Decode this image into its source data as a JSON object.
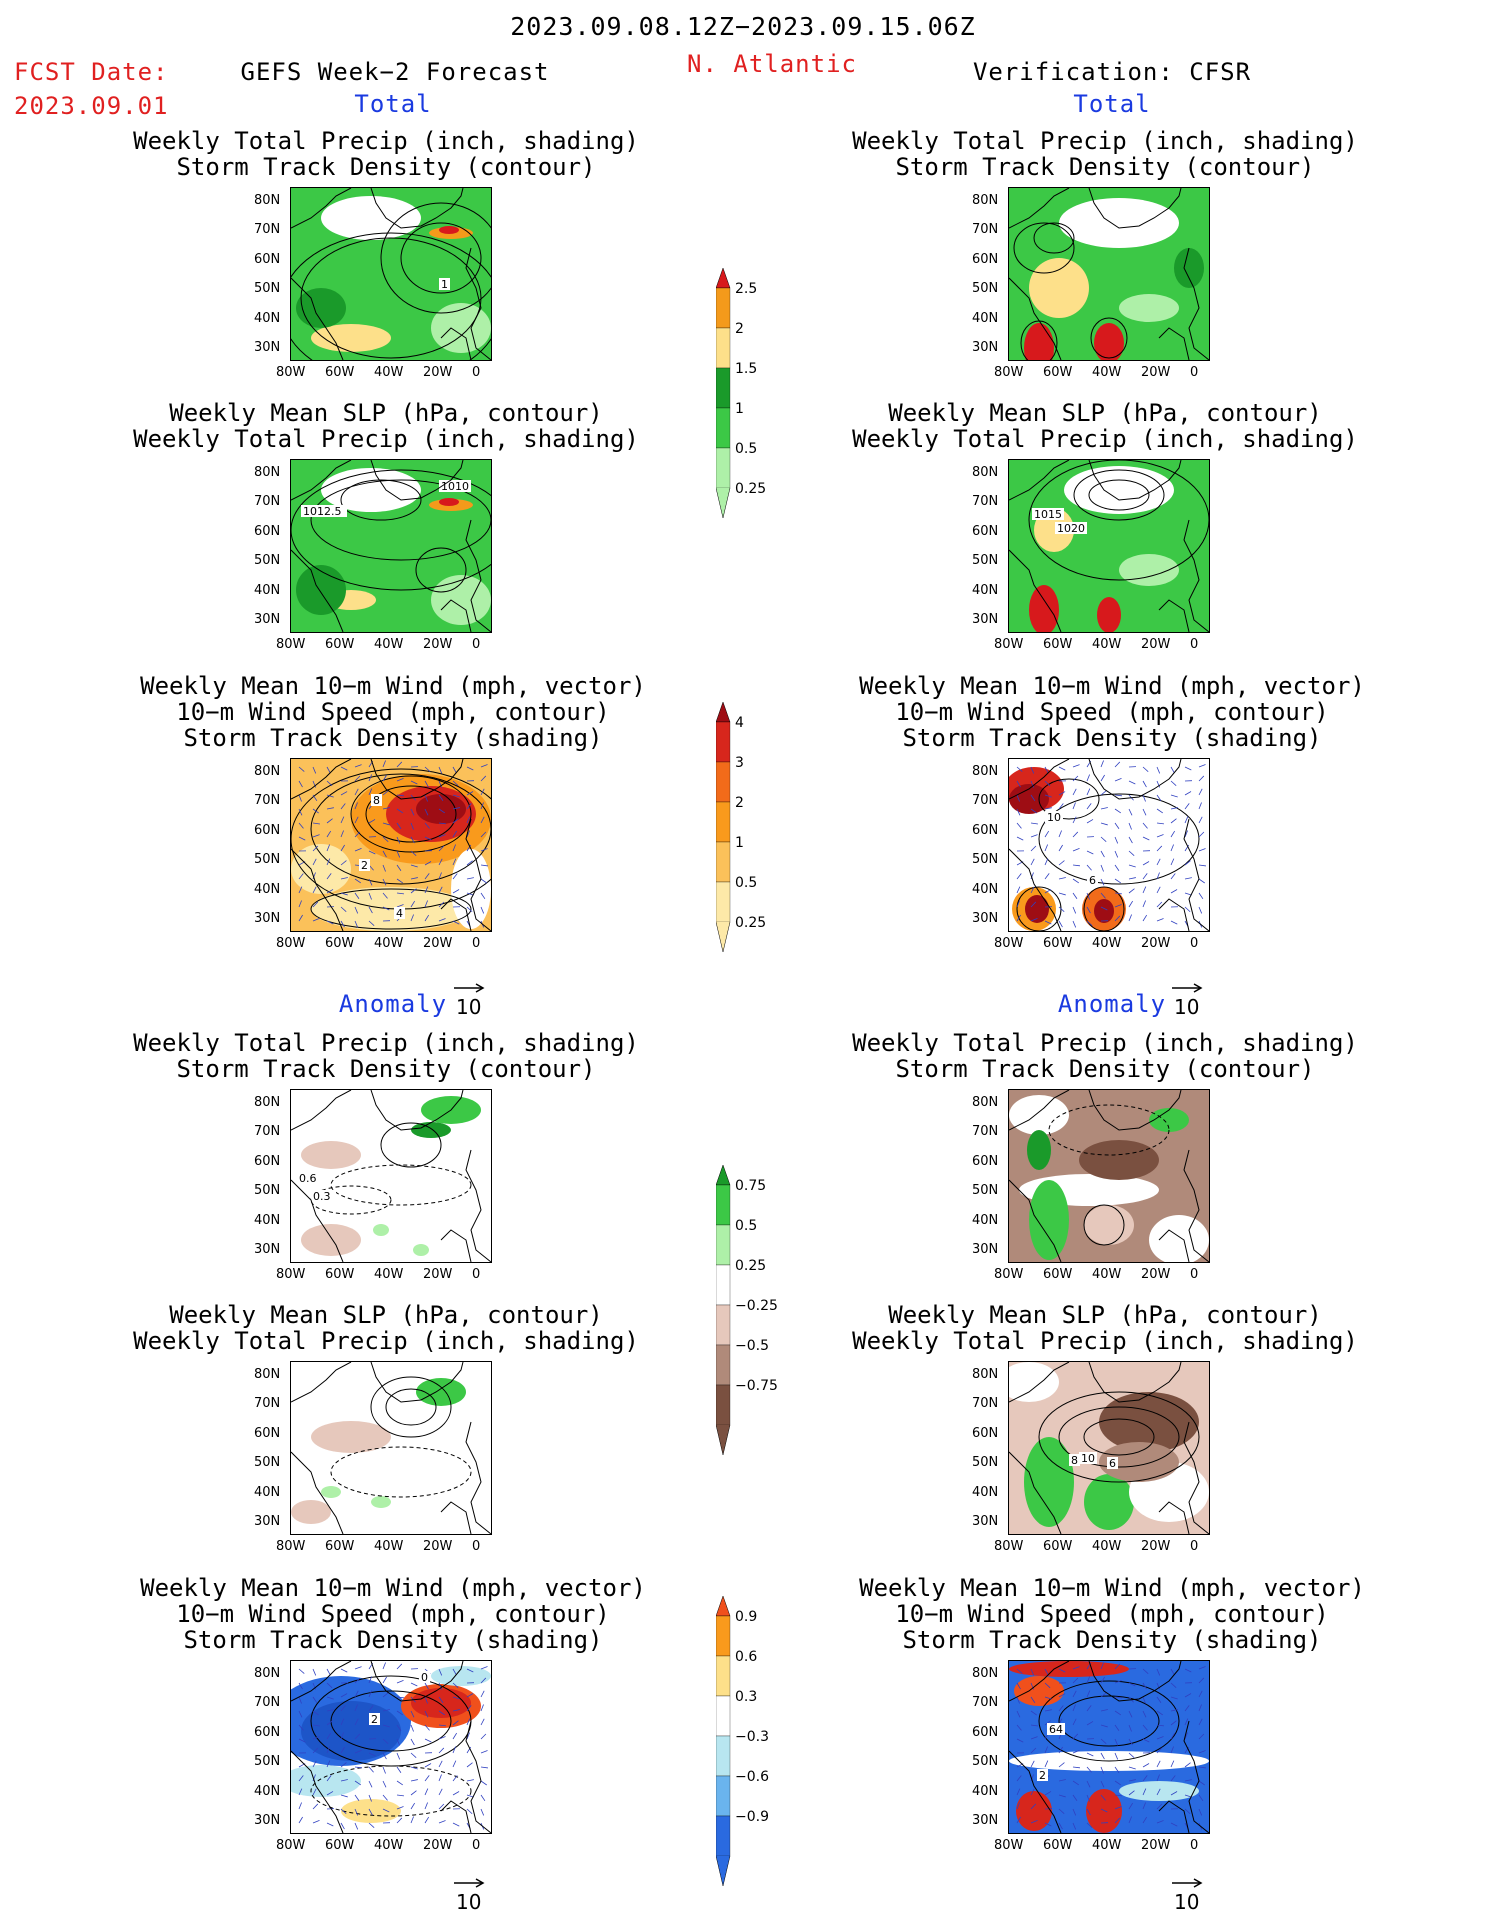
{
  "header": {
    "period": "2023.09.08.12Z−2023.09.15.06Z",
    "fcst_label": "FCST Date:",
    "fcst_date": "2023.09.01",
    "forecast_title": "GEFS Week−2 Forecast",
    "region": "N. Atlantic",
    "verification": "Verification: CFSR"
  },
  "sections": {
    "total": "Total",
    "anomaly": "Anomaly"
  },
  "panel_titles": {
    "precip_track_1": "Weekly Total Precip (inch, shading)",
    "precip_track_2": "Storm Track Density (contour)",
    "slp_precip_1": "Weekly Mean SLP (hPa, contour)",
    "slp_precip_2": "Weekly Total Precip (inch, shading)",
    "wind_1": "Weekly Mean 10−m Wind (mph, vector)",
    "wind_2": "10−m Wind Speed (mph, contour)",
    "wind_3": "Storm Track Density (shading)"
  },
  "axes": {
    "lat_labels": [
      "80N",
      "70N",
      "60N",
      "50N",
      "40N",
      "30N"
    ],
    "lon_labels": [
      "80W",
      "60W",
      "40W",
      "20W",
      "0"
    ]
  },
  "vector_ref": "10",
  "colorbars": {
    "precip_total": {
      "labels": [
        "2.5",
        "2",
        "1.5",
        "1",
        "0.5",
        "0.25"
      ],
      "colors": [
        "#d7191c",
        "#f49a1b",
        "#fde08a",
        "#1a9a2a",
        "#3cc846",
        "#aef0a8"
      ]
    },
    "track_total": {
      "labels": [
        "4",
        "3",
        "2",
        "1",
        "0.5",
        "0.25"
      ],
      "colors": [
        "#9e0d14",
        "#d7261c",
        "#f26b1a",
        "#f99a1c",
        "#fbc15a",
        "#fde9a8"
      ]
    },
    "precip_anom": {
      "labels": [
        "0.75",
        "0.5",
        "0.25",
        "−0.25",
        "−0.5",
        "−0.75"
      ],
      "colors": [
        "#1a9a2a",
        "#3cc846",
        "#aef0a8",
        "#ffffff",
        "#e6c8bc",
        "#b08a7a",
        "#7a5040"
      ]
    },
    "track_anom": {
      "labels": [
        "0.9",
        "0.6",
        "0.3",
        "−0.3",
        "−0.6",
        "−0.9"
      ],
      "colors": [
        "#f0501c",
        "#f99a1c",
        "#fde08a",
        "#ffffff",
        "#b8e6f0",
        "#6ab4ee",
        "#2a6ae0"
      ]
    }
  },
  "contour_labels": {
    "fc_total_precip": [
      "1"
    ],
    "fc_total_slp": [
      "1012.5",
      "1010"
    ],
    "fc_total_wind": [
      "8",
      "2",
      "4"
    ],
    "vf_total_slp": [
      "1015",
      "1020"
    ],
    "vf_total_wind": [
      "10",
      "6"
    ],
    "fc_anom_precip": [
      "0.6",
      "0.3"
    ],
    "fc_anom_wind": [
      "2",
      "0"
    ],
    "vf_anom_slp": [
      "8",
      "10",
      "6"
    ],
    "vf_anom_wind": [
      "64",
      "2"
    ]
  }
}
